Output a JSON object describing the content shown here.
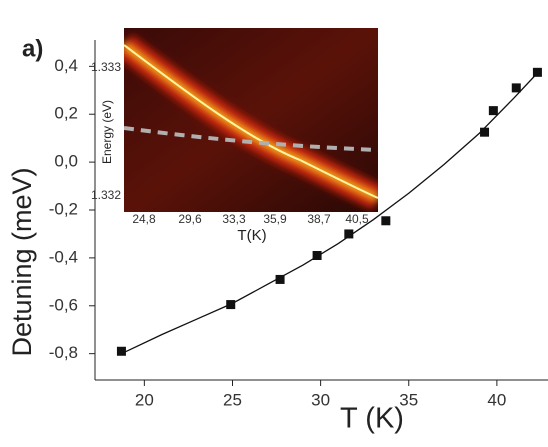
{
  "chart_data": {
    "type": "scatter",
    "panel_label": "a)",
    "xlabel": "T (K)",
    "ylabel": "Detuning (meV)",
    "xlim": [
      17.2,
      42.9
    ],
    "ylim": [
      -0.91,
      0.51
    ],
    "xticks": [
      20,
      25,
      30,
      35,
      40
    ],
    "yticks": [
      {
        "value": 0.4,
        "label": "0,4"
      },
      {
        "value": 0.2,
        "label": "0,2"
      },
      {
        "value": 0.0,
        "label": "0,0"
      },
      {
        "value": -0.2,
        "label": "-0,2"
      },
      {
        "value": -0.4,
        "label": "-0,4"
      },
      {
        "value": -0.6,
        "label": "-0,6"
      },
      {
        "value": -0.8,
        "label": "-0,8"
      }
    ],
    "color": "#111111",
    "x": [
      18.7,
      24.9,
      27.7,
      29.8,
      31.6,
      33.7,
      39.3,
      39.8,
      41.1,
      42.3
    ],
    "values": [
      -0.79,
      -0.595,
      -0.49,
      -0.39,
      -0.3,
      -0.245,
      0.125,
      0.215,
      0.31,
      0.375
    ],
    "fit": {
      "x": [
        18.7,
        21,
        23,
        25,
        27,
        29,
        31,
        33,
        35,
        37,
        39,
        41,
        42.4
      ],
      "values": [
        -0.8,
        -0.72,
        -0.655,
        -0.59,
        -0.51,
        -0.43,
        -0.34,
        -0.24,
        -0.13,
        -0.01,
        0.12,
        0.27,
        0.38
      ]
    },
    "inset": {
      "ylabel": "Energy (eV)",
      "yticks": [
        "1.333",
        "1.332"
      ],
      "xticks": [
        "24,8",
        "29,6",
        "33,3",
        "35,9",
        "38,7",
        "40,5"
      ],
      "xlabel": "T(K)"
    }
  }
}
